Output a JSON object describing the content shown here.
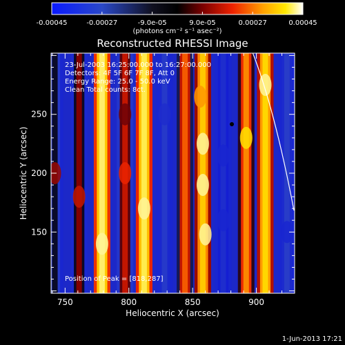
{
  "colorbar": {
    "tick_labels": [
      "-0.00045",
      "-0.00027",
      "-9.0e-05",
      "9.0e-05",
      "0.00027",
      "0.00045"
    ],
    "units_label": "(photons cm⁻² s⁻¹ asec⁻²)",
    "range": [
      -0.00045,
      0.00045
    ],
    "colormap": "blue-black-red-yellow-white"
  },
  "plot": {
    "title": "Reconstructed RHESSI Image",
    "xlabel": "Heliocentric X (arcsec)",
    "ylabel": "Heliocentric Y (arcsec)",
    "x_ticks": [
      "750",
      "800",
      "850",
      "900"
    ],
    "y_ticks": [
      "250",
      "200",
      "150"
    ],
    "info_lines": [
      "23-Jul-2003 16:25:00.000 to 16:27:00.000",
      "Detectors: 4F 5F 6F 7F 8F, Att 0",
      "Energy Range: 25.0 - 50.0 keV",
      "Clean     Total counts: 8ct."
    ],
    "peak_label": "Position of Peak = [818,287]"
  },
  "footer": {
    "timestamp": "1-Jun-2013 17:21"
  },
  "chart_data": {
    "type": "heatmap",
    "title": "Reconstructed RHESSI Image",
    "xlabel": "Heliocentric X (arcsec)",
    "ylabel": "Heliocentric Y (arcsec)",
    "xlim": [
      739,
      930
    ],
    "ylim": [
      98,
      302
    ],
    "colorbar_range": [
      -0.00045,
      0.00045
    ],
    "peak_position": [
      818,
      287
    ],
    "stripe_x_centers_arcsec": [
      742,
      761,
      779,
      797,
      812,
      828,
      844,
      858,
      874,
      892,
      907,
      924
    ],
    "stripe_levels": [
      0.3,
      0.42,
      0.92,
      0.5,
      0.9,
      0.18,
      0.62,
      0.8,
      0.1,
      0.68,
      0.83,
      0.2
    ],
    "grid": false
  }
}
